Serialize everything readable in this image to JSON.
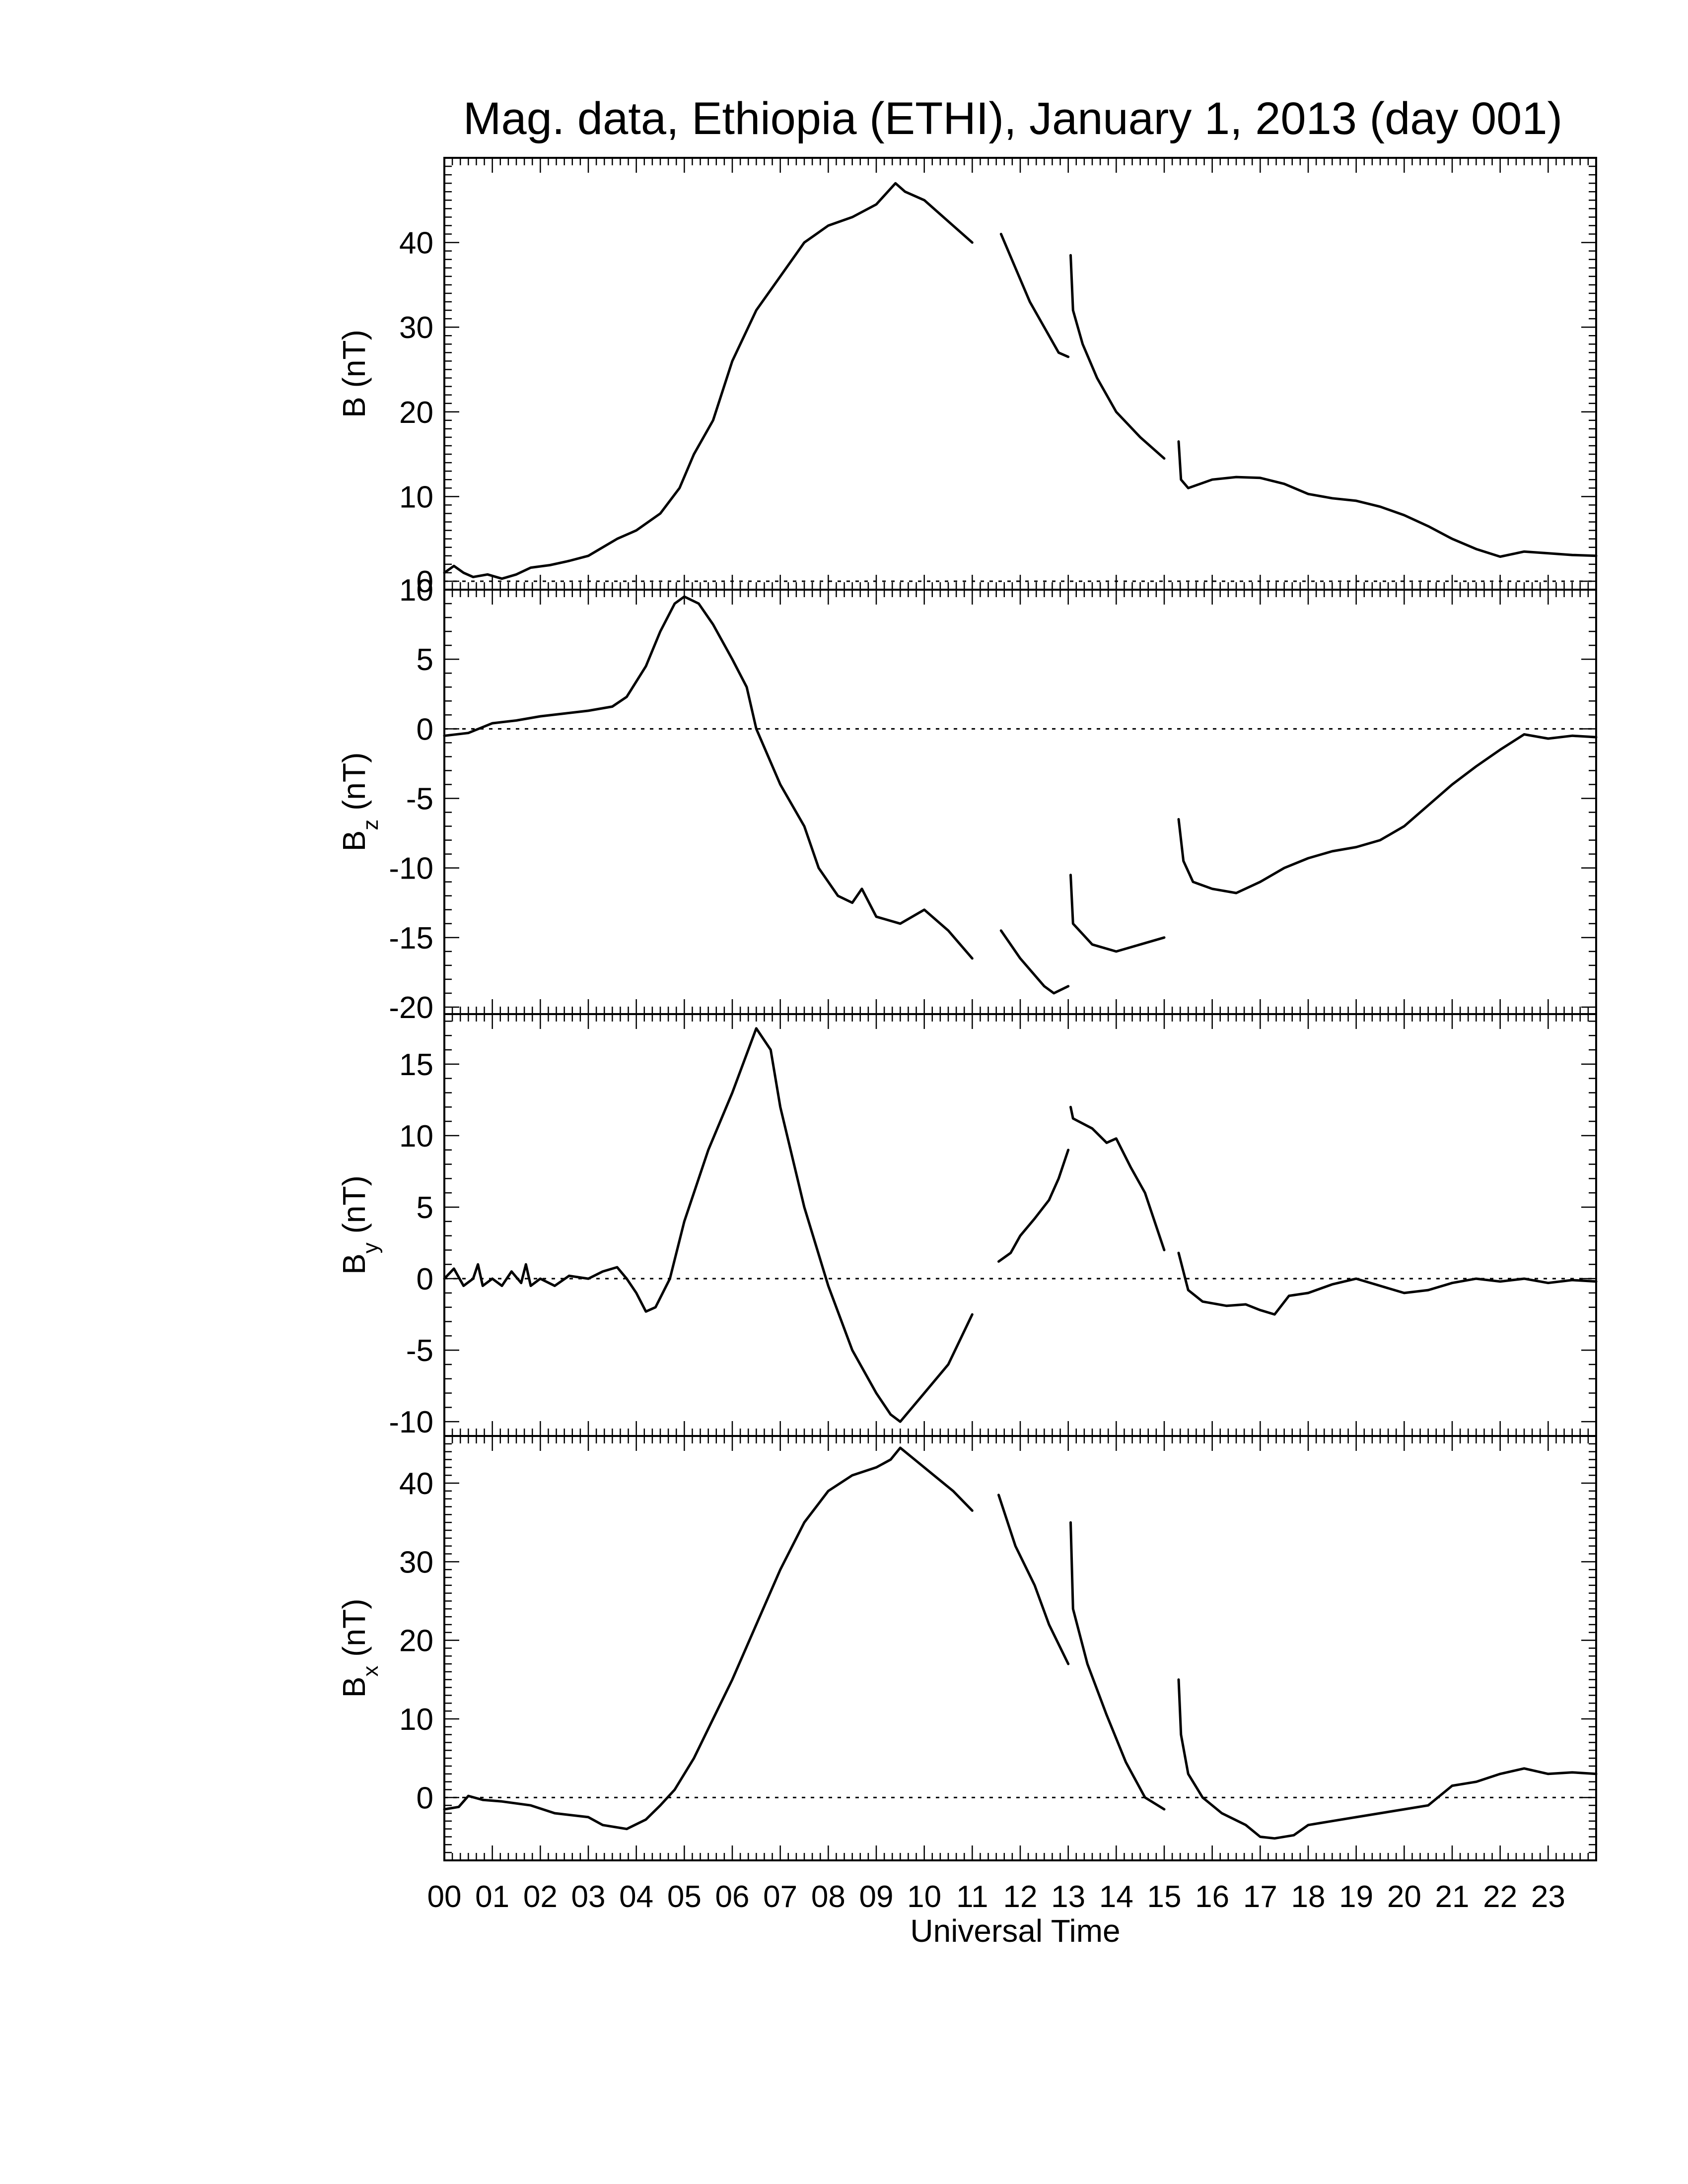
{
  "chart_data": {
    "type": "line",
    "title": "Mag. data, Ethiopia (ETHI), January 1, 2013 (day 001)",
    "xlabel": "Universal Time",
    "x_units": "hours UT",
    "xlim": [
      0,
      24
    ],
    "x_tick_labels": [
      "00",
      "01",
      "02",
      "03",
      "04",
      "05",
      "06",
      "07",
      "08",
      "09",
      "10",
      "11",
      "12",
      "13",
      "14",
      "15",
      "16",
      "17",
      "18",
      "19",
      "20",
      "21",
      "22",
      "23"
    ],
    "zero_line": "dotted",
    "panels": [
      {
        "id": "B",
        "ylabel_main": "B",
        "ylabel_sub": "",
        "ylabel_unit": "(nT)",
        "ylim": [
          -1,
          50
        ],
        "yticks": [
          0,
          10,
          20,
          30,
          40
        ],
        "ytick_labels": [
          "0",
          "10",
          "20",
          "30",
          "40"
        ],
        "segments": [
          [
            [
              0,
              1
            ],
            [
              0.2,
              1.8
            ],
            [
              0.4,
              1
            ],
            [
              0.6,
              0.5
            ],
            [
              0.9,
              0.8
            ],
            [
              1.2,
              0.3
            ],
            [
              1.5,
              0.8
            ],
            [
              1.8,
              1.6
            ],
            [
              2.2,
              1.9
            ],
            [
              2.6,
              2.4
            ],
            [
              3,
              3
            ],
            [
              3.3,
              4
            ],
            [
              3.6,
              5
            ],
            [
              4,
              6
            ],
            [
              4.5,
              8
            ],
            [
              4.9,
              11
            ],
            [
              5.2,
              15
            ],
            [
              5.6,
              19
            ],
            [
              6,
              26
            ],
            [
              6.5,
              32
            ],
            [
              7,
              36
            ],
            [
              7.5,
              40
            ],
            [
              8,
              42
            ],
            [
              8.5,
              43
            ],
            [
              9,
              44.5
            ],
            [
              9.4,
              47
            ],
            [
              9.6,
              46
            ],
            [
              10,
              45
            ],
            [
              10.4,
              43
            ],
            [
              11,
              40
            ]
          ],
          [
            [
              11.6,
              41
            ],
            [
              11.9,
              37
            ],
            [
              12.2,
              33
            ],
            [
              12.5,
              30
            ],
            [
              12.8,
              27
            ],
            [
              13,
              26.5
            ]
          ],
          [
            [
              13.05,
              38.5
            ],
            [
              13.1,
              32
            ],
            [
              13.3,
              28
            ],
            [
              13.6,
              24
            ],
            [
              14,
              20
            ],
            [
              14.5,
              17
            ],
            [
              15,
              14.5
            ]
          ],
          [
            [
              15.3,
              16.5
            ],
            [
              15.35,
              12
            ],
            [
              15.5,
              11
            ],
            [
              16,
              12
            ],
            [
              16.5,
              12.3
            ],
            [
              17,
              12.2
            ],
            [
              17.5,
              11.5
            ],
            [
              18,
              10.3
            ],
            [
              18.5,
              9.8
            ],
            [
              19,
              9.5
            ],
            [
              19.5,
              8.8
            ],
            [
              20,
              7.8
            ],
            [
              20.5,
              6.5
            ],
            [
              21,
              5
            ],
            [
              21.5,
              3.8
            ],
            [
              22,
              2.9
            ],
            [
              22.5,
              3.5
            ],
            [
              23,
              3.3
            ],
            [
              23.5,
              3.1
            ],
            [
              24,
              3
            ]
          ]
        ]
      },
      {
        "id": "Bz",
        "ylabel_main": "B",
        "ylabel_sub": "z",
        "ylabel_unit": "(nT)",
        "ylim": [
          -20.5,
          10
        ],
        "yticks": [
          -20,
          -15,
          -10,
          -5,
          0,
          5,
          10
        ],
        "ytick_labels": [
          "-20",
          "-15",
          "-10",
          "-5",
          "0",
          "5",
          "10"
        ],
        "segments": [
          [
            [
              0,
              -0.5
            ],
            [
              0.5,
              -0.3
            ],
            [
              1,
              0.4
            ],
            [
              1.5,
              0.6
            ],
            [
              2,
              0.9
            ],
            [
              2.5,
              1.1
            ],
            [
              3,
              1.3
            ],
            [
              3.5,
              1.6
            ],
            [
              3.8,
              2.3
            ],
            [
              4.2,
              4.5
            ],
            [
              4.5,
              7
            ],
            [
              4.8,
              9
            ],
            [
              5,
              9.5
            ],
            [
              5.3,
              9
            ],
            [
              5.6,
              7.5
            ],
            [
              6,
              5
            ],
            [
              6.3,
              3
            ],
            [
              6.5,
              0
            ],
            [
              7,
              -4
            ],
            [
              7.5,
              -7
            ],
            [
              7.8,
              -10
            ],
            [
              8.2,
              -12
            ],
            [
              8.5,
              -12.5
            ],
            [
              8.7,
              -11.5
            ],
            [
              9,
              -13.5
            ],
            [
              9.5,
              -14
            ],
            [
              10,
              -13
            ],
            [
              10.5,
              -14.5
            ],
            [
              11,
              -16.5
            ]
          ],
          [
            [
              11.6,
              -14.5
            ],
            [
              12,
              -16.5
            ],
            [
              12.5,
              -18.5
            ],
            [
              12.7,
              -19
            ],
            [
              13,
              -18.5
            ]
          ],
          [
            [
              13.05,
              -10.5
            ],
            [
              13.1,
              -14
            ],
            [
              13.5,
              -15.5
            ],
            [
              14,
              -16
            ],
            [
              14.5,
              -15.5
            ],
            [
              15,
              -15
            ]
          ],
          [
            [
              15.3,
              -6.5
            ],
            [
              15.4,
              -9.5
            ],
            [
              15.6,
              -11
            ],
            [
              16,
              -11.5
            ],
            [
              16.5,
              -11.8
            ],
            [
              17,
              -11
            ],
            [
              17.5,
              -10
            ],
            [
              18,
              -9.3
            ],
            [
              18.5,
              -8.8
            ],
            [
              19,
              -8.5
            ],
            [
              19.5,
              -8
            ],
            [
              20,
              -7
            ],
            [
              20.5,
              -5.5
            ],
            [
              21,
              -4
            ],
            [
              21.5,
              -2.7
            ],
            [
              22,
              -1.5
            ],
            [
              22.5,
              -0.4
            ],
            [
              23,
              -0.7
            ],
            [
              23.5,
              -0.5
            ],
            [
              24,
              -0.6
            ]
          ]
        ]
      },
      {
        "id": "By",
        "ylabel_main": "B",
        "ylabel_sub": "y",
        "ylabel_unit": "(nT)",
        "ylim": [
          -11,
          18.5
        ],
        "yticks": [
          -10,
          -5,
          0,
          5,
          10,
          15
        ],
        "ytick_labels": [
          "-10",
          "-5",
          "0",
          "5",
          "10",
          "15"
        ],
        "segments": [
          [
            [
              0,
              0
            ],
            [
              0.2,
              0.7
            ],
            [
              0.4,
              -0.5
            ],
            [
              0.6,
              0
            ],
            [
              0.7,
              1
            ],
            [
              0.8,
              -0.5
            ],
            [
              1,
              0
            ],
            [
              1.2,
              -0.5
            ],
            [
              1.4,
              0.5
            ],
            [
              1.6,
              -0.3
            ],
            [
              1.7,
              1
            ],
            [
              1.8,
              -0.5
            ],
            [
              2,
              0
            ],
            [
              2.3,
              -0.5
            ],
            [
              2.6,
              0.2
            ],
            [
              3,
              0
            ],
            [
              3.3,
              0.5
            ],
            [
              3.6,
              0.8
            ],
            [
              3.8,
              0
            ],
            [
              4,
              -1
            ],
            [
              4.2,
              -2.3
            ],
            [
              4.4,
              -2
            ],
            [
              4.7,
              0
            ],
            [
              5,
              4
            ],
            [
              5.5,
              9
            ],
            [
              6,
              13
            ],
            [
              6.5,
              17.5
            ],
            [
              6.8,
              16
            ],
            [
              7,
              12
            ],
            [
              7.5,
              5
            ],
            [
              8,
              -0.5
            ],
            [
              8.5,
              -5
            ],
            [
              9,
              -8
            ],
            [
              9.3,
              -9.5
            ],
            [
              9.5,
              -10
            ],
            [
              10,
              -8
            ],
            [
              10.5,
              -6
            ],
            [
              11,
              -2.5
            ]
          ],
          [
            [
              11.55,
              1.2
            ],
            [
              11.8,
              1.8
            ],
            [
              12,
              3
            ],
            [
              12.3,
              4.2
            ],
            [
              12.6,
              5.5
            ],
            [
              12.8,
              7
            ],
            [
              13,
              9
            ]
          ],
          [
            [
              13.05,
              12
            ],
            [
              13.1,
              11.2
            ],
            [
              13.5,
              10.5
            ],
            [
              13.8,
              9.5
            ],
            [
              14,
              9.8
            ],
            [
              14.3,
              7.8
            ],
            [
              14.6,
              6
            ],
            [
              15,
              2
            ]
          ],
          [
            [
              15.3,
              1.8
            ],
            [
              15.5,
              -0.8
            ],
            [
              15.8,
              -1.6
            ],
            [
              16.3,
              -1.9
            ],
            [
              16.7,
              -1.8
            ],
            [
              17,
              -2.2
            ],
            [
              17.3,
              -2.5
            ],
            [
              17.6,
              -1.2
            ],
            [
              18,
              -1
            ],
            [
              18.5,
              -0.4
            ],
            [
              19,
              0
            ],
            [
              19.5,
              -0.5
            ],
            [
              20,
              -1
            ],
            [
              20.5,
              -0.8
            ],
            [
              21,
              -0.3
            ],
            [
              21.5,
              0
            ],
            [
              22,
              -0.2
            ],
            [
              22.5,
              0
            ],
            [
              23,
              -0.3
            ],
            [
              23.5,
              -0.1
            ],
            [
              24,
              -0.2
            ]
          ]
        ]
      },
      {
        "id": "Bx",
        "ylabel_main": "B",
        "ylabel_sub": "x",
        "ylabel_unit": "(nT)",
        "ylim": [
          -8,
          46
        ],
        "yticks": [
          0,
          10,
          20,
          30,
          40
        ],
        "ytick_labels": [
          "0",
          "10",
          "20",
          "30",
          "40"
        ],
        "segments": [
          [
            [
              0,
              -1.5
            ],
            [
              0.3,
              -1.2
            ],
            [
              0.5,
              0.2
            ],
            [
              0.8,
              -0.3
            ],
            [
              1.2,
              -0.5
            ],
            [
              1.8,
              -1
            ],
            [
              2.3,
              -2
            ],
            [
              3,
              -2.5
            ],
            [
              3.3,
              -3.5
            ],
            [
              3.8,
              -4
            ],
            [
              4.2,
              -2.8
            ],
            [
              4.5,
              -1
            ],
            [
              4.8,
              1
            ],
            [
              5.2,
              5
            ],
            [
              5.6,
              10
            ],
            [
              6,
              15
            ],
            [
              6.5,
              22
            ],
            [
              7,
              29
            ],
            [
              7.5,
              35
            ],
            [
              8,
              39
            ],
            [
              8.5,
              41
            ],
            [
              9,
              42
            ],
            [
              9.3,
              43
            ],
            [
              9.5,
              44.5
            ],
            [
              9.8,
              43
            ],
            [
              10.2,
              41
            ],
            [
              10.6,
              39
            ],
            [
              11,
              36.5
            ]
          ],
          [
            [
              11.55,
              38.5
            ],
            [
              11.9,
              32
            ],
            [
              12.3,
              27
            ],
            [
              12.6,
              22
            ],
            [
              13,
              17
            ]
          ],
          [
            [
              13.05,
              35
            ],
            [
              13.1,
              24
            ],
            [
              13.4,
              17
            ],
            [
              13.8,
              10.5
            ],
            [
              14.2,
              4.5
            ],
            [
              14.6,
              0
            ],
            [
              15,
              -1.5
            ]
          ],
          [
            [
              15.3,
              15
            ],
            [
              15.35,
              8
            ],
            [
              15.5,
              3
            ],
            [
              15.8,
              0
            ],
            [
              16.2,
              -2
            ],
            [
              16.7,
              -3.5
            ],
            [
              17,
              -5
            ],
            [
              17.3,
              -5.2
            ],
            [
              17.7,
              -4.8
            ],
            [
              18,
              -3.5
            ],
            [
              18.5,
              -3
            ],
            [
              19,
              -2.5
            ],
            [
              19.5,
              -2
            ],
            [
              20,
              -1.5
            ],
            [
              20.5,
              -1
            ],
            [
              21,
              1.5
            ],
            [
              21.5,
              2
            ],
            [
              22,
              3
            ],
            [
              22.5,
              3.7
            ],
            [
              23,
              3
            ],
            [
              23.5,
              3.2
            ],
            [
              24,
              3
            ]
          ]
        ]
      }
    ]
  }
}
